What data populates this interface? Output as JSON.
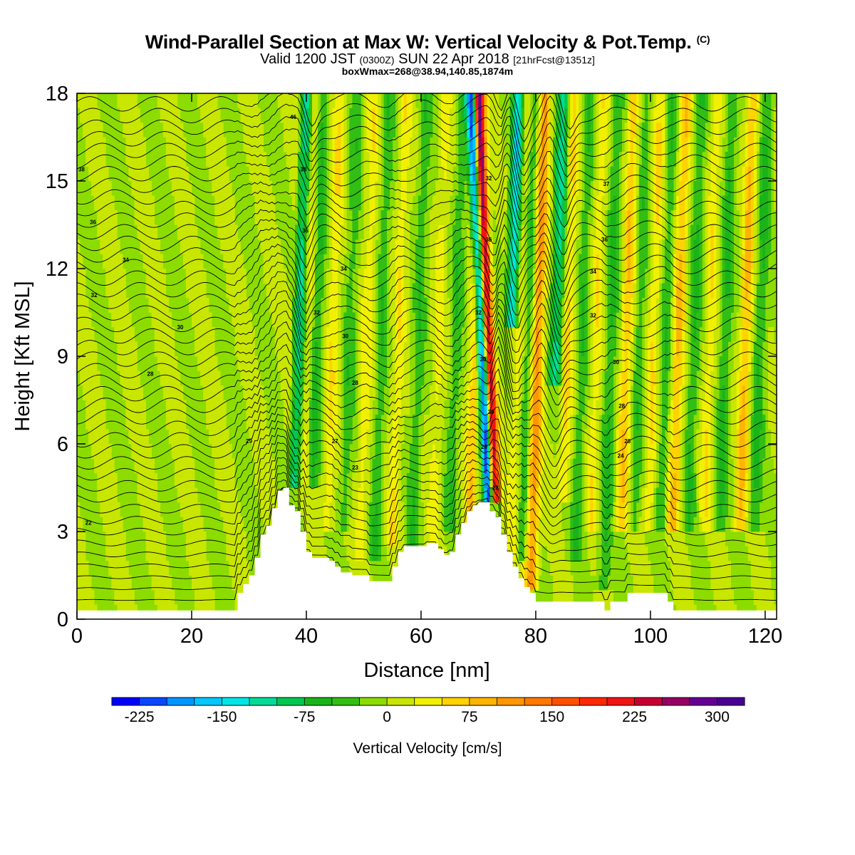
{
  "title": {
    "main": "Wind-Parallel Section at Max W: Vertical Velocity & Pot.Temp.",
    "copyright": "(C)",
    "valid_prefix": "Valid 1200 JST",
    "valid_utc": "(0300Z)",
    "valid_date": "SUN 22 Apr 2018",
    "forecast": "[21hrFcst@1351z]",
    "box_info": "boxWmax=268@38.94,140.85,1874m"
  },
  "chart_data": {
    "type": "heatmap",
    "xlabel": "Distance [nm]",
    "ylabel": "Height [Kft MSL]",
    "xlim": [
      0,
      122
    ],
    "ylim": [
      0,
      18
    ],
    "xticks": [
      0,
      20,
      40,
      60,
      80,
      100,
      120
    ],
    "yticks": [
      0,
      3,
      6,
      9,
      12,
      15,
      18
    ],
    "colorbar": {
      "label": "Vertical Velocity [cm/s]",
      "tick_labels": [
        "-225",
        "-150",
        "-75",
        "0",
        "75",
        "150",
        "225",
        "300"
      ],
      "tick_values": [
        -225,
        -150,
        -75,
        0,
        75,
        150,
        225,
        300
      ],
      "min": -250,
      "max": 325,
      "step": 25,
      "colors": [
        "#0000ff",
        "#0a46ff",
        "#0096ff",
        "#00c8ff",
        "#00e6e6",
        "#00dc96",
        "#00c850",
        "#19b419",
        "#32be14",
        "#8cdc00",
        "#c8e600",
        "#f0f000",
        "#ffd200",
        "#ffb400",
        "#ff9600",
        "#ff7800",
        "#ff5000",
        "#ff2800",
        "#f01414",
        "#c80032",
        "#960064",
        "#640096",
        "#4b0096"
      ]
    },
    "background_color": "#8cdc00",
    "terrain": [
      [
        0,
        0.3
      ],
      [
        28,
        0.3
      ],
      [
        28,
        0.9
      ],
      [
        29,
        0.9
      ],
      [
        29,
        1.2
      ],
      [
        30,
        1.2
      ],
      [
        30,
        1.5
      ],
      [
        31,
        1.5
      ],
      [
        31,
        2.1
      ],
      [
        32,
        2.1
      ],
      [
        32,
        2.9
      ],
      [
        33,
        2.9
      ],
      [
        33,
        3.2
      ],
      [
        34,
        3.2
      ],
      [
        34,
        3.8
      ],
      [
        35,
        3.8
      ],
      [
        35,
        4.4
      ],
      [
        36,
        4.4
      ],
      [
        36,
        4.5
      ],
      [
        37,
        4.5
      ],
      [
        37,
        3.9
      ],
      [
        38,
        3.9
      ],
      [
        38,
        3.7
      ],
      [
        39,
        3.7
      ],
      [
        39,
        3.0
      ],
      [
        40,
        3.0
      ],
      [
        40,
        2.3
      ],
      [
        41,
        2.3
      ],
      [
        41,
        2.1
      ],
      [
        42,
        2.1
      ],
      [
        42,
        2.1
      ],
      [
        44,
        2.1
      ],
      [
        44,
        2.0
      ],
      [
        45,
        2.0
      ],
      [
        45,
        1.8
      ],
      [
        46,
        1.8
      ],
      [
        46,
        1.6
      ],
      [
        48,
        1.6
      ],
      [
        48,
        1.5
      ],
      [
        51,
        1.5
      ],
      [
        51,
        1.3
      ],
      [
        55,
        1.3
      ],
      [
        55,
        1.8
      ],
      [
        56,
        1.8
      ],
      [
        56,
        2.3
      ],
      [
        57,
        2.3
      ],
      [
        57,
        2.5
      ],
      [
        61,
        2.5
      ],
      [
        61,
        2.6
      ],
      [
        63,
        2.6
      ],
      [
        63,
        2.4
      ],
      [
        64,
        2.4
      ],
      [
        64,
        2.2
      ],
      [
        65,
        2.2
      ],
      [
        65,
        2.3
      ],
      [
        66,
        2.3
      ],
      [
        66,
        2.9
      ],
      [
        67,
        2.9
      ],
      [
        67,
        3.3
      ],
      [
        68,
        3.3
      ],
      [
        68,
        3.7
      ],
      [
        69,
        3.7
      ],
      [
        69,
        3.9
      ],
      [
        70,
        3.9
      ],
      [
        70,
        4.0
      ],
      [
        71,
        4.0
      ],
      [
        71,
        4.0
      ],
      [
        72,
        4.0
      ],
      [
        72,
        3.7
      ],
      [
        73,
        3.7
      ],
      [
        73,
        3.5
      ],
      [
        74,
        3.5
      ],
      [
        74,
        2.9
      ],
      [
        75,
        2.9
      ],
      [
        75,
        2.3
      ],
      [
        76,
        2.3
      ],
      [
        76,
        1.8
      ],
      [
        77,
        1.8
      ],
      [
        77,
        1.4
      ],
      [
        78,
        1.4
      ],
      [
        78,
        1.1
      ],
      [
        79,
        1.1
      ],
      [
        79,
        0.9
      ],
      [
        80,
        0.9
      ],
      [
        80,
        0.6
      ],
      [
        92,
        0.6
      ],
      [
        92,
        0.3
      ],
      [
        93,
        0.3
      ],
      [
        93,
        0.6
      ],
      [
        96,
        0.6
      ],
      [
        96,
        0.9
      ],
      [
        103,
        0.9
      ],
      [
        103,
        0.6
      ],
      [
        104,
        0.6
      ],
      [
        104,
        0.3
      ],
      [
        122,
        0.3
      ]
    ],
    "w_bands": [
      {
        "x": 37.5,
        "w": 18,
        "h": [
          4.5,
          18
        ],
        "min": 0,
        "max": 125
      },
      {
        "x": 38.6,
        "w": -115,
        "h": [
          4.5,
          18
        ],
        "min": 0,
        "max": 0
      },
      {
        "x": 40.2,
        "w": 40,
        "h": [
          4.5,
          18
        ],
        "min": 0,
        "max": 0
      },
      {
        "x": 41.7,
        "w": -60,
        "h": [
          4.5,
          18
        ],
        "min": 0,
        "max": 0
      },
      {
        "x": 44.5,
        "w": 45,
        "h": [
          3.0,
          18
        ],
        "min": 0,
        "max": 0
      },
      {
        "x": 47.5,
        "w": -40,
        "h": [
          3.0,
          18
        ],
        "min": 0,
        "max": 0
      },
      {
        "x": 50.5,
        "w": 40,
        "h": [
          2.0,
          18
        ],
        "min": 0,
        "max": 0
      },
      {
        "x": 53.0,
        "w": -45,
        "h": [
          2.0,
          18
        ],
        "min": 0,
        "max": 0
      },
      {
        "x": 56.0,
        "w": 45,
        "h": [
          2.5,
          18
        ],
        "min": 0,
        "max": 0
      },
      {
        "x": 59.5,
        "w": -45,
        "h": [
          2.5,
          18
        ],
        "min": 0,
        "max": 0
      },
      {
        "x": 63.0,
        "w": 35,
        "h": [
          2.5,
          18
        ],
        "min": 0,
        "max": 0
      },
      {
        "x": 66.0,
        "w": -45,
        "h": [
          3.0,
          18
        ],
        "min": 0,
        "max": 0
      },
      {
        "x": 69.3,
        "w": 70,
        "h": [
          3.0,
          18
        ],
        "min": 0,
        "max": 0
      },
      {
        "x": 71.8,
        "w": -230,
        "h": [
          4.0,
          18
        ],
        "min": 0,
        "max": 0
      },
      {
        "x": 73.0,
        "w": 250,
        "h": [
          4.0,
          18
        ],
        "min": 0,
        "max": 0
      },
      {
        "x": 75.7,
        "w": -150,
        "h": [
          10,
          18
        ],
        "min": 0,
        "max": 0
      },
      {
        "x": 77.0,
        "w": 45,
        "h": [
          2.0,
          18
        ],
        "min": 0,
        "max": 0
      },
      {
        "x": 78.5,
        "w": -55,
        "h": [
          2.0,
          18
        ],
        "min": 0,
        "max": 0
      },
      {
        "x": 80.3,
        "w": 115,
        "h": [
          1.2,
          18
        ],
        "min": 0,
        "max": 0
      },
      {
        "x": 83.5,
        "w": -110,
        "h": [
          8,
          18
        ],
        "min": 0,
        "max": 0
      },
      {
        "x": 85.5,
        "w": 55,
        "h": [
          4,
          18
        ],
        "min": 0,
        "max": 0
      },
      {
        "x": 88.0,
        "w": -45,
        "h": [
          2.0,
          18
        ],
        "min": 0,
        "max": 0
      },
      {
        "x": 90.5,
        "w": 45,
        "h": [
          3.0,
          18
        ],
        "min": 0,
        "max": 0
      },
      {
        "x": 93.0,
        "w": -55,
        "h": [
          1.0,
          18
        ],
        "min": 0,
        "max": 0
      },
      {
        "x": 95.8,
        "w": 70,
        "h": [
          3.0,
          18
        ],
        "min": 0,
        "max": 0
      },
      {
        "x": 98.0,
        "w": -40,
        "h": [
          3.0,
          18
        ],
        "min": 0,
        "max": 0
      },
      {
        "x": 100.5,
        "w": 50,
        "h": [
          3.0,
          18
        ],
        "min": 0,
        "max": 0
      },
      {
        "x": 102.5,
        "w": -45,
        "h": [
          3.0,
          18
        ],
        "min": 0,
        "max": 0
      },
      {
        "x": 104.8,
        "w": 75,
        "h": [
          3.0,
          18
        ],
        "min": 0,
        "max": 0
      },
      {
        "x": 107.5,
        "w": -50,
        "h": [
          3.0,
          18
        ],
        "min": 0,
        "max": 0
      },
      {
        "x": 110.3,
        "w": 45,
        "h": [
          3.0,
          18
        ],
        "min": 0,
        "max": 0
      },
      {
        "x": 113.0,
        "w": -55,
        "h": [
          3.0,
          18
        ],
        "min": 0,
        "max": 0
      },
      {
        "x": 116.5,
        "w": 80,
        "h": [
          3.0,
          18
        ],
        "min": 0,
        "max": 0
      },
      {
        "x": 119.0,
        "w": -55,
        "h": [
          3.0,
          18
        ],
        "min": 0,
        "max": 0
      }
    ],
    "contour_labels": [
      {
        "text": "46",
        "x": 37.7,
        "y": 17.2
      },
      {
        "text": "38",
        "x": 0.8,
        "y": 15.4
      },
      {
        "text": "38",
        "x": 39.5,
        "y": 15.4
      },
      {
        "text": "32",
        "x": 71.8,
        "y": 15.1
      },
      {
        "text": "37",
        "x": 92.3,
        "y": 14.9
      },
      {
        "text": "36",
        "x": 2.8,
        "y": 13.6
      },
      {
        "text": "36",
        "x": 39.8,
        "y": 13.3
      },
      {
        "text": "36",
        "x": 71.8,
        "y": 13.0
      },
      {
        "text": "36",
        "x": 92.0,
        "y": 13.0
      },
      {
        "text": "34",
        "x": 8.5,
        "y": 12.3
      },
      {
        "text": "34",
        "x": 46.5,
        "y": 12.0
      },
      {
        "text": "34",
        "x": 90.0,
        "y": 11.9
      },
      {
        "text": "32",
        "x": 3.0,
        "y": 11.1
      },
      {
        "text": "32",
        "x": 41.8,
        "y": 10.5
      },
      {
        "text": "32",
        "x": 70.0,
        "y": 10.5
      },
      {
        "text": "32",
        "x": 90.0,
        "y": 10.4
      },
      {
        "text": "30",
        "x": 18.0,
        "y": 10.0
      },
      {
        "text": "30",
        "x": 46.8,
        "y": 9.7
      },
      {
        "text": "30",
        "x": 70.8,
        "y": 8.9
      },
      {
        "text": "30",
        "x": 94.0,
        "y": 8.8
      },
      {
        "text": "28",
        "x": 12.8,
        "y": 8.4
      },
      {
        "text": "28",
        "x": 48.5,
        "y": 8.1
      },
      {
        "text": "28",
        "x": 95.0,
        "y": 7.3
      },
      {
        "text": "30",
        "x": 72.2,
        "y": 7.1
      },
      {
        "text": "29",
        "x": 30.0,
        "y": 6.1
      },
      {
        "text": "27",
        "x": 45.0,
        "y": 6.1
      },
      {
        "text": "28",
        "x": 96.0,
        "y": 6.1
      },
      {
        "text": "29",
        "x": 71.0,
        "y": 5.9
      },
      {
        "text": "24",
        "x": 94.8,
        "y": 5.6
      },
      {
        "text": "23",
        "x": 48.5,
        "y": 5.2
      },
      {
        "text": "28",
        "x": 73.0,
        "y": 4.5
      },
      {
        "text": "22",
        "x": 2.0,
        "y": 3.3
      }
    ]
  }
}
